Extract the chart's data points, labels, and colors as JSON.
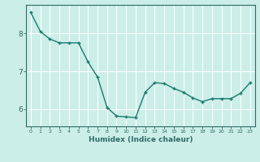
{
  "x": [
    0,
    1,
    2,
    3,
    4,
    5,
    6,
    7,
    8,
    9,
    10,
    11,
    12,
    13,
    14,
    15,
    16,
    17,
    18,
    19,
    20,
    21,
    22,
    23
  ],
  "y": [
    8.55,
    8.05,
    7.85,
    7.75,
    7.75,
    7.75,
    7.25,
    6.85,
    6.05,
    5.82,
    5.8,
    5.78,
    6.45,
    6.7,
    6.68,
    6.55,
    6.45,
    6.3,
    6.2,
    6.28,
    6.28,
    6.28,
    6.42,
    6.7
  ],
  "xlabel": "Humidex (Indice chaleur)",
  "bg_color": "#cceee8",
  "line_color": "#1a7a6e",
  "marker_color": "#1a7a6e",
  "grid_color": "#ffffff",
  "tick_color": "#2e6b65",
  "xlim": [
    -0.5,
    23.5
  ],
  "ylim": [
    5.55,
    8.75
  ],
  "yticks": [
    6,
    7,
    8
  ],
  "xticks": [
    0,
    1,
    2,
    3,
    4,
    5,
    6,
    7,
    8,
    9,
    10,
    11,
    12,
    13,
    14,
    15,
    16,
    17,
    18,
    19,
    20,
    21,
    22,
    23
  ]
}
